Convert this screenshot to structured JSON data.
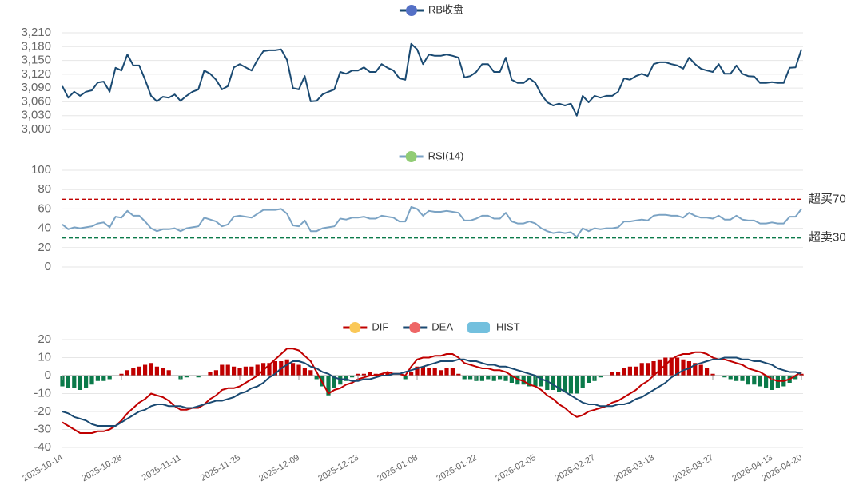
{
  "chart_data": [
    {
      "type": "line",
      "series": [
        {
          "name": "RB收盘",
          "color": "#1a4a72",
          "legend_color": "#5470c6",
          "values": [
            3094,
            3069,
            3082,
            3073,
            3082,
            3085,
            3102,
            3104,
            3082,
            3134,
            3128,
            3163,
            3139,
            3139,
            3108,
            3073,
            3061,
            3071,
            3069,
            3076,
            3062,
            3073,
            3082,
            3087,
            3128,
            3121,
            3108,
            3087,
            3094,
            3135,
            3142,
            3135,
            3128,
            3151,
            3170,
            3172,
            3172,
            3174,
            3151,
            3090,
            3087,
            3116,
            3061,
            3062,
            3076,
            3082,
            3087,
            3125,
            3121,
            3128,
            3128,
            3135,
            3125,
            3125,
            3142,
            3134,
            3128,
            3111,
            3108,
            3186,
            3174,
            3142,
            3163,
            3160,
            3160,
            3163,
            3160,
            3156,
            3113,
            3116,
            3125,
            3142,
            3142,
            3125,
            3125,
            3156,
            3108,
            3101,
            3101,
            3111,
            3101,
            3076,
            3059,
            3052,
            3056,
            3052,
            3056,
            3030,
            3073,
            3059,
            3073,
            3069,
            3073,
            3073,
            3082,
            3111,
            3108,
            3116,
            3121,
            3116,
            3142,
            3146,
            3146,
            3142,
            3139,
            3132,
            3156,
            3142,
            3132,
            3128,
            3125,
            3142,
            3121,
            3121,
            3139,
            3121,
            3116,
            3115,
            3101,
            3101,
            3103,
            3101,
            3101,
            3134,
            3135,
            3174
          ]
        }
      ],
      "ylim": [
        3000,
        3210
      ],
      "yticks": [
        {
          "value": 3000,
          "label": "3,000"
        },
        {
          "value": 3030,
          "label": "3,030"
        },
        {
          "value": 3060,
          "label": "3,060"
        },
        {
          "value": 3090,
          "label": "3,090"
        },
        {
          "value": 3120,
          "label": "3,120"
        },
        {
          "value": 3150,
          "label": "3,150"
        },
        {
          "value": 3180,
          "label": "3,180"
        },
        {
          "value": 3210,
          "label": "3,210"
        }
      ],
      "grid": true
    },
    {
      "type": "line",
      "series": [
        {
          "name": "RSI(14)",
          "color": "#7ba3c4",
          "legend_color": "#91cc75",
          "values": [
            44,
            39,
            41,
            40,
            41,
            42,
            45,
            46,
            41,
            52,
            51,
            58,
            53,
            53,
            47,
            40,
            37,
            39,
            39,
            40,
            37,
            40,
            41,
            42,
            51,
            49,
            47,
            42,
            44,
            52,
            53,
            52,
            51,
            55,
            59,
            59,
            59,
            60,
            55,
            43,
            42,
            48,
            37,
            37,
            40,
            41,
            42,
            50,
            49,
            51,
            51,
            52,
            50,
            50,
            53,
            52,
            51,
            47,
            47,
            62,
            60,
            53,
            58,
            57,
            57,
            58,
            57,
            56,
            48,
            48,
            50,
            53,
            53,
            50,
            50,
            56,
            47,
            45,
            45,
            47,
            45,
            40,
            37,
            35,
            36,
            35,
            36,
            31,
            40,
            37,
            40,
            39,
            40,
            40,
            41,
            47,
            47,
            48,
            49,
            48,
            53,
            54,
            54,
            53,
            53,
            51,
            56,
            53,
            51,
            51,
            50,
            53,
            49,
            49,
            53,
            49,
            48,
            48,
            45,
            45,
            46,
            45,
            45,
            52,
            52,
            60
          ]
        }
      ],
      "ylim": [
        0,
        100
      ],
      "yticks": [
        0,
        20,
        40,
        60,
        80,
        100
      ],
      "grid": true,
      "ref_lines": [
        {
          "value": 70,
          "label": "超买70",
          "color": "#c00000"
        },
        {
          "value": 30,
          "label": "超卖30",
          "color": "#0b7a4a"
        }
      ]
    },
    {
      "type": "combo",
      "categories": [
        "2025-10-14",
        null,
        null,
        null,
        null,
        null,
        null,
        null,
        null,
        null,
        "2025-10-28",
        null,
        null,
        null,
        null,
        null,
        null,
        null,
        null,
        null,
        "2025-11-11",
        null,
        null,
        null,
        null,
        null,
        null,
        null,
        null,
        null,
        "2025-11-25",
        null,
        null,
        null,
        null,
        null,
        null,
        null,
        null,
        null,
        "2025-12-09",
        null,
        null,
        null,
        null,
        null,
        null,
        null,
        null,
        null,
        "2025-12-23",
        null,
        null,
        null,
        null,
        null,
        null,
        null,
        null,
        null,
        "2026-01-08",
        null,
        null,
        null,
        null,
        null,
        null,
        null,
        null,
        null,
        "2026-01-22",
        null,
        null,
        null,
        null,
        null,
        null,
        null,
        null,
        null,
        "2026-02-05",
        null,
        null,
        null,
        null,
        null,
        null,
        null,
        null,
        null,
        "2026-02-27",
        null,
        null,
        null,
        null,
        null,
        null,
        null,
        null,
        null,
        "2026-03-13",
        null,
        null,
        null,
        null,
        null,
        null,
        null,
        null,
        null,
        "2026-03-27",
        null,
        null,
        null,
        null,
        null,
        null,
        null,
        null,
        null,
        "2026-04-13",
        null,
        null,
        null,
        null,
        "2026-04-20"
      ],
      "series": [
        {
          "name": "DIF",
          "kind": "line",
          "color": "#c00000",
          "legend_color": "#fac858",
          "values": [
            -26,
            -28,
            -30,
            -32,
            -32,
            -32,
            -31,
            -31,
            -30,
            -28,
            -25,
            -21,
            -18,
            -15,
            -13,
            -10,
            -11,
            -12,
            -14,
            -17,
            -19,
            -19,
            -18,
            -18,
            -16,
            -13,
            -11,
            -8,
            -7,
            -7,
            -6,
            -4,
            -2,
            0,
            3,
            6,
            9,
            12,
            15,
            15,
            14,
            11,
            8,
            2,
            -4,
            -10,
            -8,
            -7,
            -5,
            -4,
            -2,
            -1,
            0,
            0,
            1,
            2,
            1,
            1,
            0,
            5,
            9,
            10,
            10,
            11,
            11,
            12,
            12,
            10,
            7,
            6,
            5,
            4,
            4,
            3,
            3,
            2,
            0,
            -2,
            -3,
            -5,
            -6,
            -8,
            -11,
            -13,
            -16,
            -18,
            -21,
            -23,
            -22,
            -20,
            -19,
            -18,
            -17,
            -15,
            -14,
            -12,
            -10,
            -8,
            -5,
            -3,
            0,
            3,
            6,
            9,
            11,
            12,
            12,
            13,
            13,
            12,
            10,
            9,
            9,
            8,
            7,
            6,
            4,
            3,
            2,
            0,
            -2,
            -3,
            -3,
            -2,
            0,
            2
          ]
        },
        {
          "name": "DEA",
          "kind": "line",
          "color": "#1a4a72",
          "legend_color": "#ee6666",
          "values": [
            -20,
            -21,
            -23,
            -24,
            -25,
            -27,
            -28,
            -28,
            -28,
            -28,
            -26,
            -24,
            -22,
            -20,
            -19,
            -17,
            -16,
            -16,
            -17,
            -17,
            -17,
            -18,
            -18,
            -17,
            -16,
            -15,
            -14,
            -14,
            -13,
            -12,
            -10,
            -9,
            -7,
            -6,
            -4,
            -1,
            1,
            4,
            6,
            8,
            8,
            7,
            5,
            4,
            2,
            1,
            -1,
            -2,
            -2,
            -3,
            -3,
            -2,
            -2,
            -1,
            0,
            0,
            1,
            1,
            2,
            3,
            4,
            5,
            6,
            7,
            8,
            8,
            8,
            9,
            9,
            8,
            8,
            7,
            6,
            6,
            5,
            5,
            4,
            3,
            2,
            1,
            0,
            -2,
            -3,
            -5,
            -7,
            -9,
            -11,
            -13,
            -15,
            -16,
            -16,
            -17,
            -17,
            -17,
            -16,
            -16,
            -15,
            -13,
            -12,
            -10,
            -8,
            -6,
            -4,
            -1,
            1,
            3,
            4,
            6,
            7,
            8,
            9,
            9,
            10,
            10,
            10,
            9,
            9,
            8,
            8,
            7,
            6,
            4,
            3,
            2,
            2,
            1
          ]
        },
        {
          "name": "HIST",
          "kind": "bar",
          "color_up": "#c00000",
          "color_down": "#0b7a4a",
          "legend_color": "#73c0de",
          "values": [
            -6,
            -7,
            -7,
            -8,
            -7,
            -5,
            -3,
            -3,
            -2,
            0,
            1,
            3,
            4,
            5,
            6,
            7,
            5,
            4,
            3,
            0,
            -2,
            -1,
            0,
            -1,
            0,
            2,
            3,
            6,
            6,
            5,
            4,
            5,
            5,
            6,
            7,
            7,
            8,
            8,
            9,
            7,
            6,
            4,
            3,
            -2,
            -6,
            -11,
            -7,
            -5,
            -3,
            -1,
            1,
            1,
            2,
            1,
            1,
            2,
            0,
            0,
            -2,
            2,
            5,
            5,
            4,
            4,
            3,
            4,
            4,
            1,
            -2,
            -2,
            -3,
            -3,
            -2,
            -3,
            -2,
            -3,
            -4,
            -5,
            -5,
            -6,
            -6,
            -6,
            -8,
            -8,
            -9,
            -9,
            -10,
            -10,
            -7,
            -4,
            -3,
            -1,
            0,
            2,
            2,
            4,
            5,
            5,
            7,
            7,
            8,
            9,
            10,
            10,
            10,
            9,
            8,
            7,
            6,
            4,
            1,
            0,
            -1,
            -2,
            -3,
            -3,
            -5,
            -5,
            -6,
            -7,
            -8,
            -7,
            -6,
            -4,
            -2,
            1
          ]
        }
      ],
      "ylim": [
        -40,
        20
      ],
      "yticks": [
        -40,
        -30,
        -20,
        -10,
        0,
        10,
        20
      ],
      "grid": true
    }
  ]
}
